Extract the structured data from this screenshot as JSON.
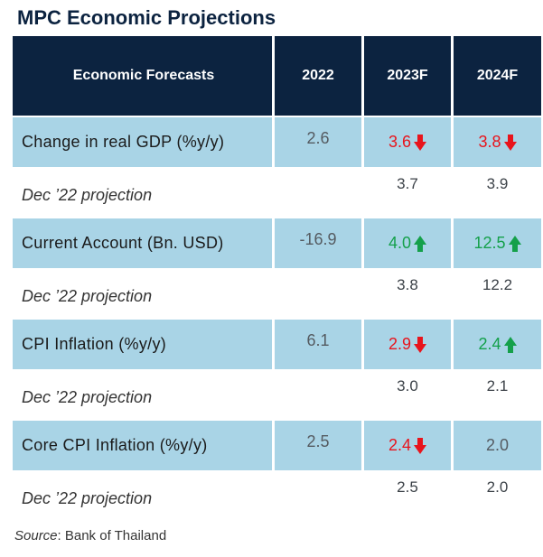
{
  "title": "MPC Economic Projections",
  "table": {
    "headers": [
      "Economic Forecasts",
      "2022",
      "2023F",
      "2024F"
    ],
    "rows": [
      {
        "label": "Change in real GDP (%y/y)",
        "v2022": "2.6",
        "v2023": {
          "value": "3.6",
          "trend": "down"
        },
        "v2024": {
          "value": "3.8",
          "trend": "down"
        },
        "projection": {
          "label": "Dec ’22 projection",
          "v2023": "3.7",
          "v2024": "3.9"
        }
      },
      {
        "label": "Current Account (Bn. USD)",
        "v2022": "-16.9",
        "v2023": {
          "value": "4.0",
          "trend": "up"
        },
        "v2024": {
          "value": "12.5",
          "trend": "up"
        },
        "projection": {
          "label": "Dec ’22 projection",
          "v2023": "3.8",
          "v2024": "12.2"
        }
      },
      {
        "label": "CPI Inflation (%y/y)",
        "v2022": "6.1",
        "v2023": {
          "value": "2.9",
          "trend": "down"
        },
        "v2024": {
          "value": "2.4",
          "trend": "up"
        },
        "projection": {
          "label": "Dec ’22 projection",
          "v2023": "3.0",
          "v2024": "2.1"
        }
      },
      {
        "label": "Core CPI Inflation (%y/y)",
        "v2022": "2.5",
        "v2023": {
          "value": "2.4",
          "trend": "down"
        },
        "v2024": {
          "value": "2.0",
          "trend": "none"
        },
        "projection": {
          "label": "Dec ’22 projection",
          "v2023": "2.5",
          "v2024": "2.0"
        }
      }
    ]
  },
  "source": {
    "label": "Source",
    "text": ": Bank of Thailand"
  },
  "colors": {
    "header_bg": "#0c2340",
    "row_bg": "#a9d4e6",
    "down": "#e8141c",
    "up": "#14a04a"
  },
  "icons": {
    "down": "arrow-down-icon",
    "up": "arrow-up-icon"
  }
}
